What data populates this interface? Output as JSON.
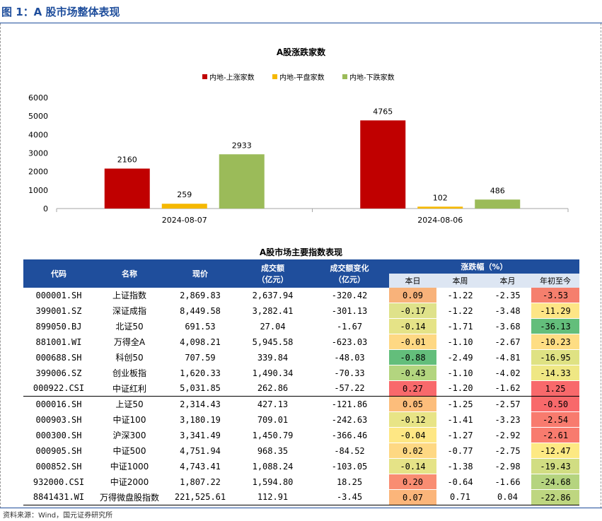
{
  "figure_title": "图 1：A 股市场整体表现",
  "chart_data": {
    "type": "bar",
    "title": "A股涨跌家数",
    "categories": [
      "2024-08-07",
      "2024-08-06"
    ],
    "series": [
      {
        "name": "内地-上涨家数",
        "color": "#c00000",
        "values": [
          2160,
          4765
        ]
      },
      {
        "name": "内地-平盘家数",
        "color": "#f5b800",
        "values": [
          259,
          102
        ]
      },
      {
        "name": "内地-下跌家数",
        "color": "#9bbb59",
        "values": [
          2933,
          486
        ]
      }
    ],
    "yticks": [
      0,
      1000,
      2000,
      3000,
      4000,
      5000,
      6000
    ],
    "ylim": [
      0,
      6000
    ],
    "legend_position": "top",
    "grid": false
  },
  "table": {
    "title": "A股市场主要指数表现",
    "headers": {
      "code": "代码",
      "name": "名称",
      "price": "现价",
      "turnover": "成交额",
      "turnover_unit": "（亿元）",
      "turnover_change": "成交额变化",
      "turnover_change_unit": "（亿元）",
      "pct_group": "涨跌幅（%）",
      "day": "本日",
      "week": "本周",
      "month": "本月",
      "ytd": "年初至今"
    },
    "rows": [
      {
        "code": "000001.SH",
        "name": "上证指数",
        "price": "2,869.83",
        "turnover": "2,637.94",
        "change": "-320.42",
        "day": "0.09",
        "week": "-1.22",
        "month": "-2.35",
        "ytd": "-3.53",
        "day_color": "#f8b27a",
        "ytd_color": "#f57f6d"
      },
      {
        "code": "399001.SZ",
        "name": "深证成指",
        "price": "8,449.58",
        "turnover": "3,282.41",
        "change": "-301.13",
        "day": "-0.17",
        "week": "-1.22",
        "month": "-3.48",
        "ytd": "-11.29",
        "day_color": "#dfe28a",
        "ytd_color": "#fde585"
      },
      {
        "code": "899050.BJ",
        "name": "北证50",
        "price": "691.53",
        "turnover": "27.04",
        "change": "-1.67",
        "day": "-0.14",
        "week": "-1.71",
        "month": "-3.68",
        "ytd": "-36.13",
        "day_color": "#e5e387",
        "ytd_color": "#63be7b"
      },
      {
        "code": "881001.WI",
        "name": "万得全A",
        "price": "4,098.21",
        "turnover": "5,945.58",
        "change": "-623.03",
        "day": "-0.01",
        "week": "-1.10",
        "month": "-2.67",
        "ytd": "-10.23",
        "day_color": "#fed883",
        "ytd_color": "#fedd83"
      },
      {
        "code": "000688.SH",
        "name": "科创50",
        "price": "707.59",
        "turnover": "339.84",
        "change": "-48.03",
        "day": "-0.88",
        "week": "-2.49",
        "month": "-4.81",
        "ytd": "-16.95",
        "day_color": "#63be7b",
        "ytd_color": "#dfe283"
      },
      {
        "code": "399006.SZ",
        "name": "创业板指",
        "price": "1,620.33",
        "turnover": "1,490.34",
        "change": "-70.33",
        "day": "-0.43",
        "week": "-1.10",
        "month": "-4.02",
        "ytd": "-14.33",
        "day_color": "#b3d57f",
        "ytd_color": "#efe784"
      },
      {
        "code": "000922.CSI",
        "name": "中证红利",
        "price": "5,031.85",
        "turnover": "262.86",
        "change": "-57.22",
        "day": "0.27",
        "week": "-1.20",
        "month": "-1.62",
        "ytd": "1.25",
        "day_color": "#f8696b",
        "ytd_color": "#f8696b"
      },
      {
        "code": "000016.SH",
        "name": "上证50",
        "price": "2,314.43",
        "turnover": "427.13",
        "change": "-121.86",
        "day": "0.05",
        "week": "-1.25",
        "month": "-2.57",
        "ytd": "-0.50",
        "day_color": "#fcbd7b",
        "ytd_color": "#f8696b"
      },
      {
        "code": "000903.SH",
        "name": "中证100",
        "price": "3,180.19",
        "turnover": "709.01",
        "change": "-242.63",
        "day": "-0.12",
        "week": "-1.41",
        "month": "-3.23",
        "ytd": "-2.54",
        "day_color": "#e8e486",
        "ytd_color": "#f87b6e"
      },
      {
        "code": "000300.SH",
        "name": "沪深300",
        "price": "3,341.49",
        "turnover": "1,450.79",
        "change": "-366.46",
        "day": "-0.04",
        "week": "-1.27",
        "month": "-2.92",
        "ytd": "-2.61",
        "day_color": "#fee784",
        "ytd_color": "#f87b6e"
      },
      {
        "code": "000905.SH",
        "name": "中证500",
        "price": "4,751.94",
        "turnover": "968.35",
        "change": "-84.52",
        "day": "0.02",
        "week": "-0.77",
        "month": "-2.75",
        "ytd": "-12.47",
        "day_color": "#fed883",
        "ytd_color": "#fde983"
      },
      {
        "code": "000852.SH",
        "name": "中证1000",
        "price": "4,743.41",
        "turnover": "1,088.24",
        "change": "-103.05",
        "day": "-0.14",
        "week": "-1.38",
        "month": "-2.98",
        "ytd": "-19.43",
        "day_color": "#e5e387",
        "ytd_color": "#d1dd82"
      },
      {
        "code": "932000.CSI",
        "name": "中证2000",
        "price": "1,807.22",
        "turnover": "1,594.80",
        "change": "18.25",
        "day": "0.20",
        "week": "-0.64",
        "month": "-1.66",
        "ytd": "-24.68",
        "day_color": "#f98d72",
        "ytd_color": "#b5d47f"
      },
      {
        "code": "8841431.WI",
        "name": "万得微盘股指数",
        "price": "221,525.61",
        "turnover": "112.91",
        "change": "-3.45",
        "day": "0.07",
        "week": "0.71",
        "month": "0.04",
        "ytd": "-22.86",
        "day_color": "#fbb57a",
        "ytd_color": "#bed680"
      }
    ]
  },
  "footer": "资料来源：Wind，国元证券研究所"
}
